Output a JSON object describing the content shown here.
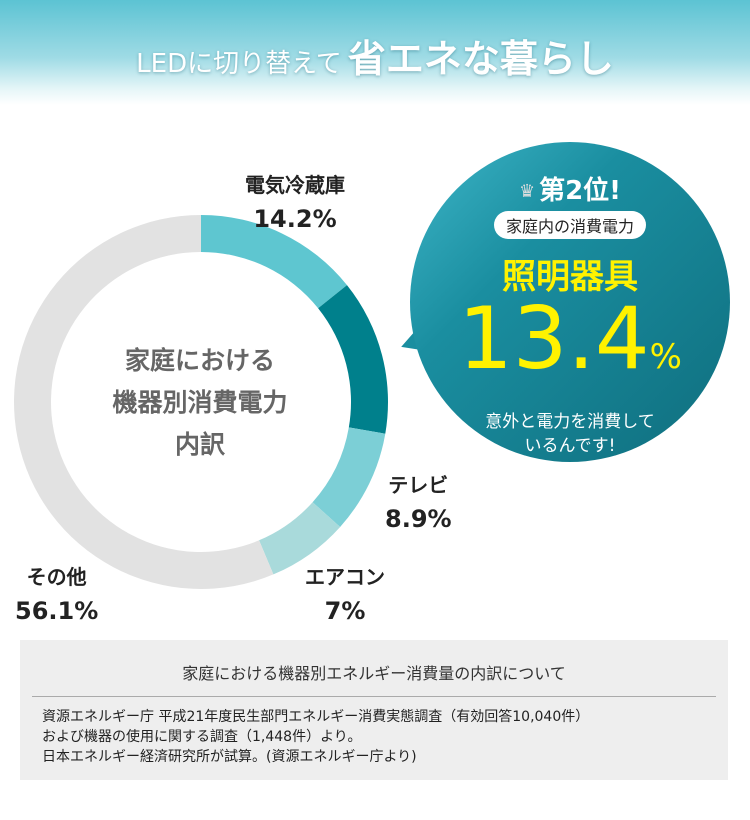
{
  "header": {
    "title_part1": "LEDに切り替えて",
    "title_part2": "省エネな暮らし"
  },
  "chart_data": {
    "type": "pie",
    "title": "家庭における機器別消費電力内訳",
    "categories": [
      "電気冷蔵庫",
      "照明器具",
      "テレビ",
      "エアコン",
      "その他"
    ],
    "values": [
      14.2,
      13.4,
      8.9,
      7,
      56.1
    ],
    "value_labels": [
      "14.2%",
      "13.4%",
      "8.9%",
      "7%",
      "56.1%"
    ],
    "colors": [
      "#5ec6d0",
      "#00808c",
      "#7ccfd6",
      "#a9dadb",
      "#e2e2e2"
    ],
    "donut": true,
    "start": "top",
    "direction": "clockwise"
  },
  "center_label": [
    "家庭における",
    "機器別消費電力",
    "内訳"
  ],
  "bubble": {
    "rank": "第2位!",
    "subtitle": "家庭内の消費電力",
    "item": "照明器具",
    "value": "13.4",
    "unit": "%",
    "desc1": "意外と電力を消費して",
    "desc2": "いるんです!"
  },
  "note": {
    "title": "家庭における機器別エネルギー消費量の内訳について",
    "lines": [
      "資源エネルギー庁 平成21年度民生部門エネルギー消費実態調査（有効回答10,040件）",
      "および機器の使用に関する調査（1,448件）より。",
      "日本エネルギー経済研究所が試算。(資源エネルギー庁より)"
    ]
  }
}
